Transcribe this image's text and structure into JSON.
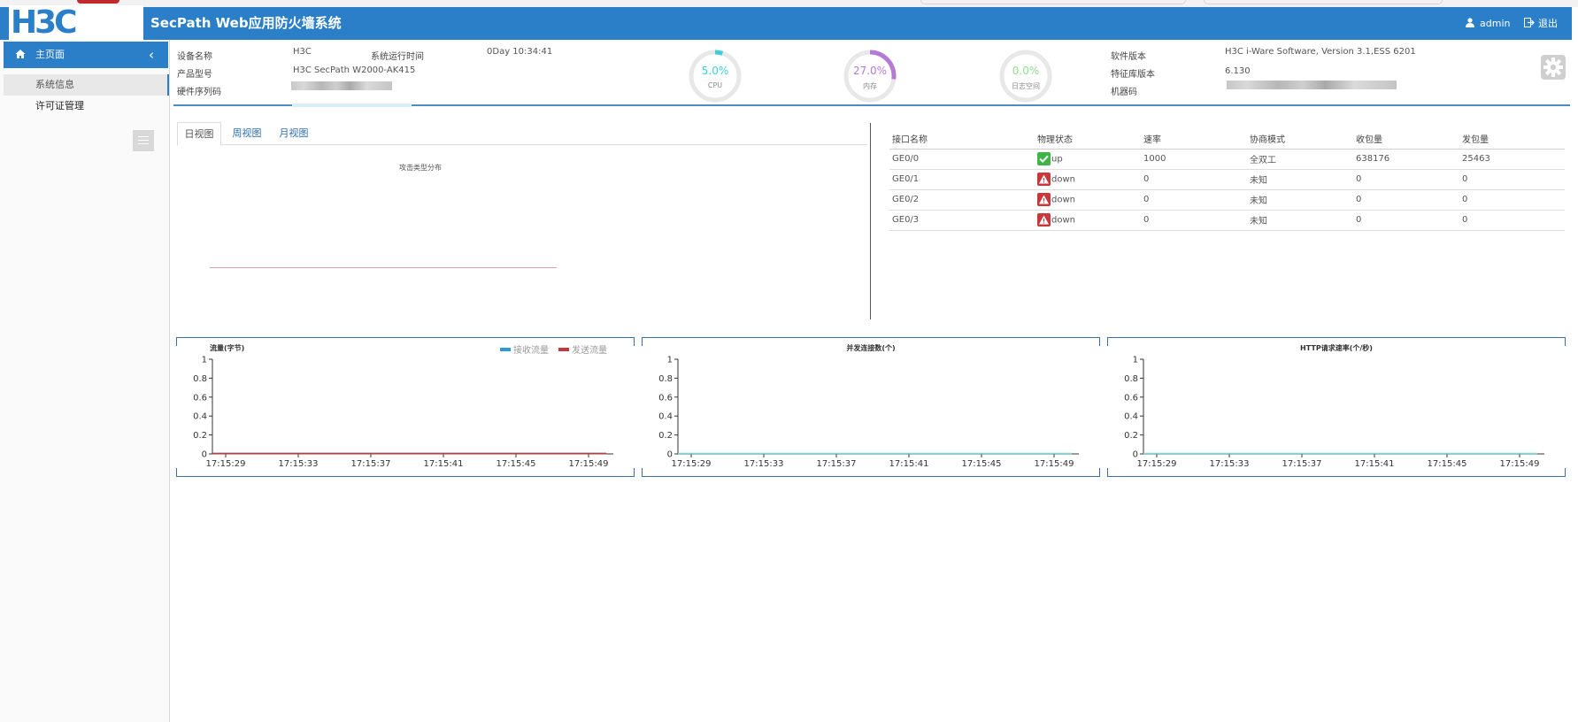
{
  "header": {
    "logo": "H3C",
    "title": "SecPath Web应用防火墙系统",
    "user": "admin",
    "logout": "退出"
  },
  "sidebar": {
    "home": "主页面",
    "collapse": "‹",
    "items": [
      {
        "label": "系统信息",
        "active": true
      },
      {
        "label": "许可证管理",
        "active": false
      }
    ]
  },
  "device": {
    "name_label": "设备名称",
    "name": "H3C",
    "uptime_label": "系统运行时间",
    "uptime": "0Day 10:34:41",
    "model_label": "产品型号",
    "model": "H3C SecPath W2000-AK415",
    "serial_label": "硬件序列码",
    "software_label": "软件版本",
    "software": "H3C i-Ware Software, Version 3.1,ESS 6201",
    "signature_label": "特征库版本",
    "signature": "6.130",
    "machine_label": "机器码"
  },
  "gauges": [
    {
      "value": "5.0%",
      "label": "CPU",
      "fraction": 0.05,
      "color": "#3ccfd9"
    },
    {
      "value": "27.0%",
      "label": "内存",
      "fraction": 0.27,
      "color": "#b57ad6"
    },
    {
      "value": "0.0%",
      "label": "日志空间",
      "fraction": 0.0,
      "color": "#8fe08a"
    }
  ],
  "tabs": [
    {
      "label": "日视图",
      "active": true
    },
    {
      "label": "周视图",
      "active": false
    },
    {
      "label": "月视图",
      "active": false
    }
  ],
  "attack_chart_title": "攻击类型分布",
  "interfaces": {
    "headers": [
      "接口名称",
      "物理状态",
      "速率",
      "协商模式",
      "收包量",
      "发包量"
    ],
    "rows": [
      [
        "GE0/0",
        "up",
        "1000",
        "全双工",
        "638176",
        "25463"
      ],
      [
        "GE0/1",
        "down",
        "0",
        "未知",
        "0",
        "0"
      ],
      [
        "GE0/2",
        "down",
        "0",
        "未知",
        "0",
        "0"
      ],
      [
        "GE0/3",
        "down",
        "0",
        "未知",
        "0",
        "0"
      ]
    ]
  },
  "colors": {
    "header_blue": "#2b7fc8",
    "up_green": "#3fb548",
    "down_red": "#c8383b",
    "recv": "#2a9bd6",
    "send": "#c8383b",
    "line_cyan": "#7fd6d6"
  },
  "chart_data": [
    {
      "type": "line",
      "title": "流量(字节)",
      "legend": [
        "接收流量",
        "发送流量"
      ],
      "legend_position": "top-right",
      "x": [
        "17:15:29",
        "17:15:33",
        "17:15:37",
        "17:15:41",
        "17:15:45",
        "17:15:49"
      ],
      "yticks": [
        "0",
        "0.2",
        "0.4",
        "0.6",
        "0.8",
        "1"
      ],
      "ylim": [
        0,
        1
      ],
      "series": [
        {
          "name": "接收流量",
          "values": [
            0,
            0,
            0,
            0,
            0,
            0
          ],
          "color": "#2a9bd6"
        },
        {
          "name": "发送流量",
          "values": [
            0,
            0,
            0,
            0,
            0,
            0
          ],
          "color": "#c8383b"
        }
      ]
    },
    {
      "type": "line",
      "title": "并发连接数(个)",
      "x": [
        "17:15:29",
        "17:15:33",
        "17:15:37",
        "17:15:41",
        "17:15:45",
        "17:15:49"
      ],
      "yticks": [
        "0",
        "0.2",
        "0.4",
        "0.6",
        "0.8",
        "1"
      ],
      "ylim": [
        0,
        1
      ],
      "series": [
        {
          "values": [
            0,
            0,
            0,
            0,
            0,
            0
          ],
          "color": "#7fd6d6"
        }
      ]
    },
    {
      "type": "line",
      "title": "HTTP请求速率(个/秒)",
      "x": [
        "17:15:29",
        "17:15:33",
        "17:15:37",
        "17:15:41",
        "17:15:45",
        "17:15:49"
      ],
      "yticks": [
        "0",
        "0.2",
        "0.4",
        "0.6",
        "0.8",
        "1"
      ],
      "ylim": [
        0,
        1
      ],
      "series": [
        {
          "values": [
            0,
            0,
            0,
            0,
            0,
            0
          ],
          "color": "#7fd6d6"
        }
      ]
    }
  ]
}
